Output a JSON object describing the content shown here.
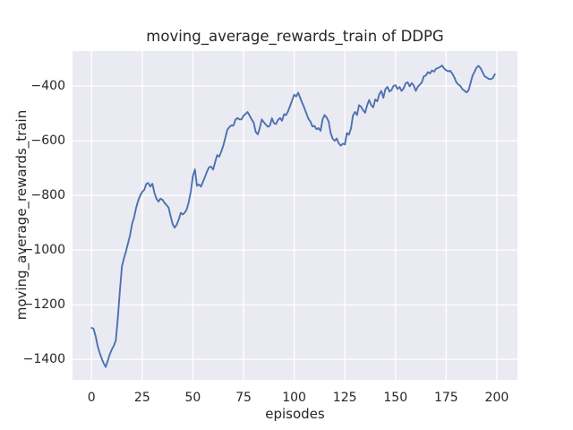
{
  "colors": {
    "line": "#4c72b0",
    "plot_background": "#eaeaf2",
    "grid": "#ffffff",
    "text": "#262626",
    "figure_background": "#ffffff"
  },
  "chart_data": {
    "type": "line",
    "title": "moving_average_rewards_train of DDPG",
    "xlabel": "episodes",
    "ylabel": "moving_average_rewards_train",
    "xlim": [
      -9.4,
      210.2
    ],
    "ylim": [
      -1475,
      -272
    ],
    "grid": true,
    "legend": "none",
    "x_ticks": [
      0,
      25,
      50,
      75,
      100,
      125,
      150,
      175,
      200
    ],
    "x_tick_labels": [
      "0",
      "25",
      "50",
      "75",
      "100",
      "125",
      "150",
      "175",
      "200"
    ],
    "y_ticks": [
      -1400,
      -1200,
      -1000,
      -800,
      -600,
      -400
    ],
    "y_tick_labels": [
      "−1400",
      "−1200",
      "−1000",
      "−800",
      "−600",
      "−400"
    ],
    "series": [
      {
        "name": "moving_average_rewards_train",
        "x": [
          0,
          1,
          2,
          3,
          4,
          5,
          6,
          7,
          8,
          9,
          10,
          11,
          12,
          13,
          14,
          15,
          16,
          17,
          18,
          19,
          20,
          21,
          22,
          23,
          24,
          25,
          26,
          27,
          28,
          29,
          30,
          31,
          32,
          33,
          34,
          35,
          36,
          37,
          38,
          39,
          40,
          41,
          42,
          43,
          44,
          45,
          46,
          47,
          48,
          49,
          50,
          51,
          52,
          53,
          54,
          55,
          56,
          57,
          58,
          59,
          60,
          61,
          62,
          63,
          64,
          65,
          66,
          67,
          68,
          69,
          70,
          71,
          72,
          73,
          74,
          75,
          76,
          77,
          78,
          79,
          80,
          81,
          82,
          83,
          84,
          85,
          86,
          87,
          88,
          89,
          90,
          91,
          92,
          93,
          94,
          95,
          96,
          97,
          98,
          99,
          100,
          101,
          102,
          103,
          104,
          105,
          106,
          107,
          108,
          109,
          110,
          111,
          112,
          113,
          114,
          115,
          116,
          117,
          118,
          119,
          120,
          121,
          122,
          123,
          124,
          125,
          126,
          127,
          128,
          129,
          130,
          131,
          132,
          133,
          134,
          135,
          136,
          137,
          138,
          139,
          140,
          141,
          142,
          143,
          144,
          145,
          146,
          147,
          148,
          149,
          150,
          151,
          152,
          153,
          154,
          155,
          156,
          157,
          158,
          159,
          160,
          161,
          162,
          163,
          164,
          165,
          166,
          167,
          168,
          169,
          170,
          171,
          172,
          173,
          174,
          175,
          176,
          177,
          178,
          179,
          180,
          181,
          182,
          183,
          184,
          185,
          186,
          187,
          188,
          189,
          190,
          191,
          192,
          193,
          194,
          195,
          196,
          197,
          198,
          199
        ],
        "y": [
          -1285,
          -1288,
          -1315,
          -1352,
          -1376,
          -1397,
          -1415,
          -1428,
          -1405,
          -1382,
          -1364,
          -1350,
          -1330,
          -1245,
          -1145,
          -1060,
          -1030,
          -1005,
          -975,
          -945,
          -905,
          -880,
          -845,
          -820,
          -800,
          -787,
          -780,
          -758,
          -755,
          -768,
          -757,
          -790,
          -812,
          -823,
          -812,
          -816,
          -827,
          -835,
          -845,
          -875,
          -905,
          -918,
          -908,
          -889,
          -864,
          -870,
          -863,
          -851,
          -823,
          -785,
          -730,
          -705,
          -765,
          -760,
          -768,
          -750,
          -732,
          -712,
          -697,
          -695,
          -706,
          -678,
          -653,
          -658,
          -640,
          -618,
          -590,
          -560,
          -550,
          -544,
          -545,
          -523,
          -517,
          -522,
          -522,
          -508,
          -502,
          -495,
          -508,
          -522,
          -533,
          -568,
          -577,
          -555,
          -522,
          -532,
          -541,
          -549,
          -545,
          -518,
          -536,
          -539,
          -524,
          -517,
          -527,
          -503,
          -506,
          -492,
          -472,
          -452,
          -432,
          -438,
          -424,
          -444,
          -462,
          -480,
          -500,
          -519,
          -530,
          -548,
          -546,
          -558,
          -554,
          -564,
          -522,
          -506,
          -515,
          -530,
          -572,
          -593,
          -600,
          -592,
          -610,
          -618,
          -611,
          -614,
          -572,
          -578,
          -556,
          -508,
          -495,
          -506,
          -470,
          -476,
          -488,
          -498,
          -470,
          -451,
          -470,
          -478,
          -449,
          -456,
          -430,
          -418,
          -443,
          -412,
          -403,
          -420,
          -415,
          -400,
          -397,
          -411,
          -403,
          -418,
          -409,
          -390,
          -386,
          -401,
          -389,
          -398,
          -418,
          -402,
          -395,
          -386,
          -364,
          -361,
          -349,
          -354,
          -343,
          -347,
          -337,
          -334,
          -330,
          -325,
          -336,
          -342,
          -346,
          -344,
          -354,
          -368,
          -386,
          -394,
          -400,
          -411,
          -417,
          -423,
          -417,
          -390,
          -362,
          -348,
          -332,
          -326,
          -335,
          -350,
          -364,
          -369,
          -374,
          -375,
          -371,
          -357
        ]
      }
    ]
  }
}
